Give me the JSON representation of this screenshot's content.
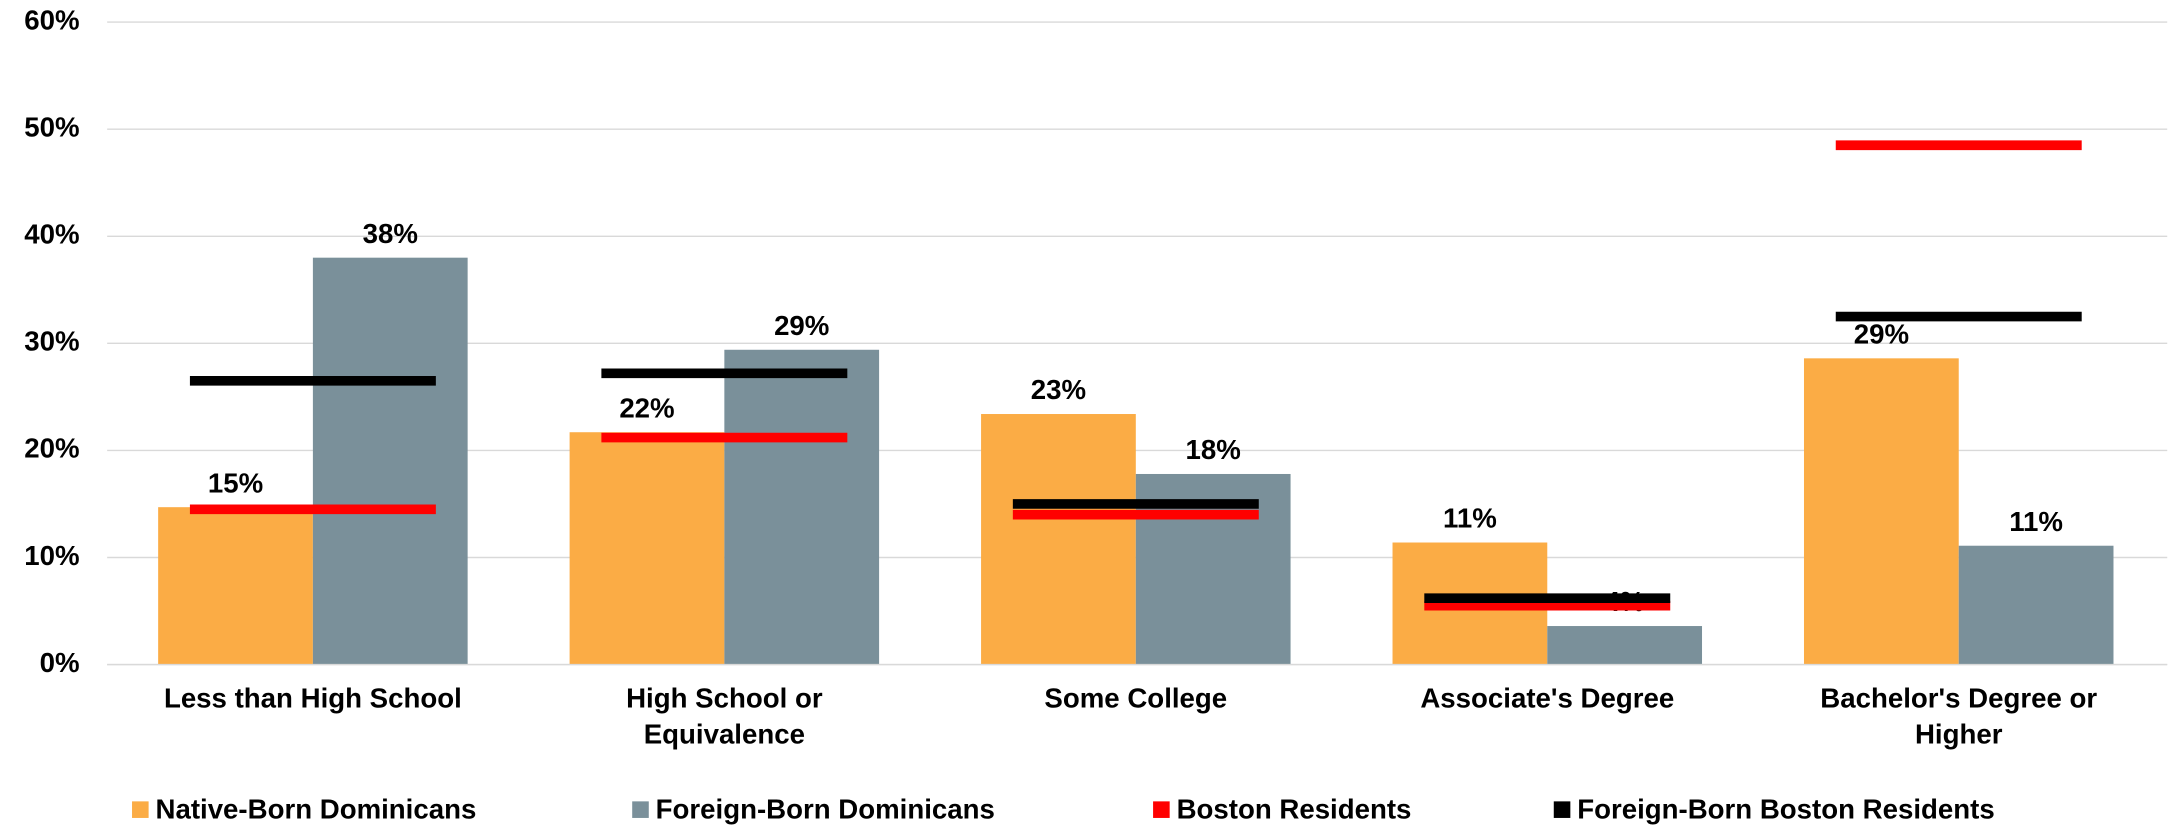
{
  "chart_data": {
    "type": "bar",
    "categories": [
      "Less than High School",
      "High School or Equivalence",
      "Some College",
      "Associate's Degree",
      "Bachelor's Degree or Higher"
    ],
    "series": [
      {
        "name": "Native-Born Dominicans",
        "color": "#fbac45",
        "values": [
          14.7,
          21.7,
          23.4,
          11.4,
          28.6
        ],
        "value_labels": [
          "15%",
          "22%",
          "23%",
          "11%",
          "29%"
        ]
      },
      {
        "name": "Foreign-Born Dominicans",
        "color": "#7a909a",
        "values": [
          38,
          29.4,
          17.8,
          3.6,
          11.1
        ],
        "value_labels": [
          "38%",
          "29%",
          "18%",
          "4%",
          "11%"
        ]
      },
      {
        "name": "Boston Residents",
        "color": "#ff0000",
        "type": "marker-line",
        "values": [
          14.5,
          21.2,
          14.0,
          5.5,
          48.5
        ]
      },
      {
        "name": "Foreign-Born Boston Residents",
        "color": "#000000",
        "type": "marker-line",
        "values": [
          26.5,
          27.2,
          15.0,
          6.2,
          32.5
        ]
      }
    ],
    "ylim": [
      0,
      60
    ],
    "yticks": [
      {
        "value": 0,
        "label": "0%"
      },
      {
        "value": 10,
        "label": "10%"
      },
      {
        "value": 20,
        "label": "20%"
      },
      {
        "value": 30,
        "label": "30%"
      },
      {
        "value": 40,
        "label": "40%"
      },
      {
        "value": 50,
        "label": "50%"
      },
      {
        "value": 60,
        "label": "60%"
      }
    ],
    "grid": true,
    "legend": "bottom"
  }
}
